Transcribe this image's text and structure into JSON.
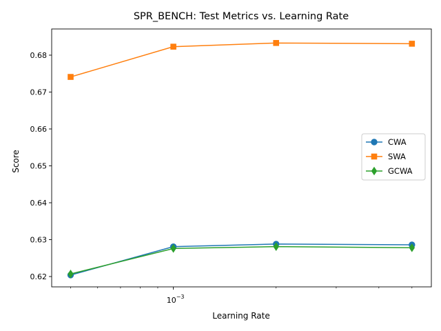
{
  "chart_data": {
    "type": "line",
    "title": "SPR_BENCH: Test Metrics vs. Learning Rate",
    "xlabel": "Learning Rate",
    "ylabel": "Score",
    "xscale": "log",
    "x": [
      0.0005,
      0.001,
      0.002,
      0.005
    ],
    "xlim": [
      0.00044,
      0.0057
    ],
    "ylim": [
      0.6172,
      0.6871
    ],
    "yticks": [
      0.62,
      0.63,
      0.64,
      0.65,
      0.66,
      0.67,
      0.68
    ],
    "ytick_labels": [
      "0.62",
      "0.63",
      "0.64",
      "0.65",
      "0.66",
      "0.67",
      "0.68"
    ],
    "xtick_major": [
      0.001
    ],
    "xtick_major_labels": [
      {
        "base": "10",
        "exp": "−3"
      }
    ],
    "xtick_minor": [
      0.0005,
      0.0006,
      0.0007,
      0.0008,
      0.0009,
      0.002,
      0.003,
      0.004,
      0.005
    ],
    "grid": false,
    "legend_position": "center-right",
    "series": [
      {
        "name": "CWA",
        "color": "#1f77b4",
        "marker": "circle",
        "values": [
          0.6204,
          0.6281,
          0.6288,
          0.6286
        ]
      },
      {
        "name": "SWA",
        "color": "#ff7f0e",
        "marker": "square",
        "values": [
          0.6741,
          0.6823,
          0.6833,
          0.6831
        ]
      },
      {
        "name": "GCWA",
        "color": "#2ca02c",
        "marker": "diamond",
        "values": [
          0.6207,
          0.6276,
          0.6281,
          0.6278
        ]
      }
    ]
  }
}
